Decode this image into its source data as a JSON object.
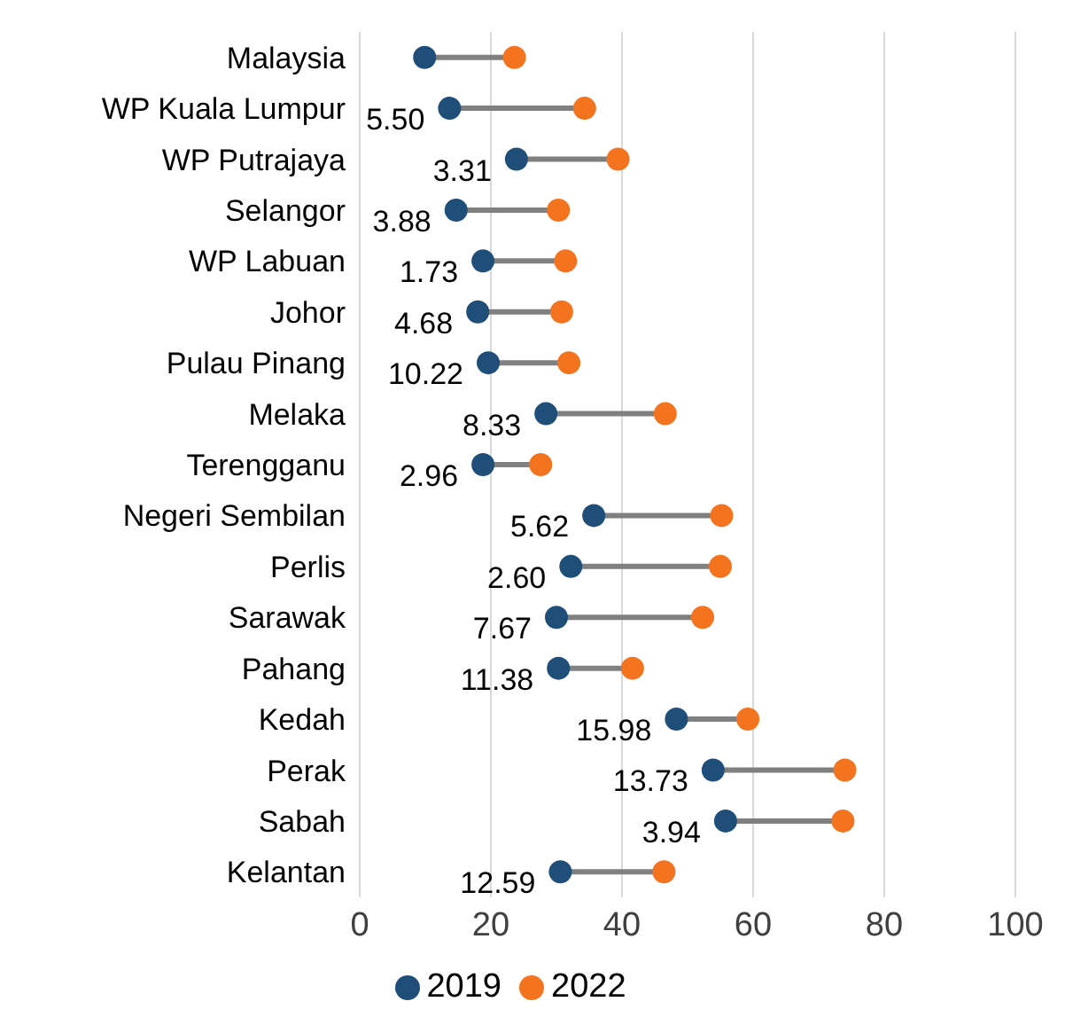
{
  "chart_data": {
    "type": "scatter",
    "orientation": "horizontal",
    "categories": [
      "Malaysia",
      "WP Kuala Lumpur",
      "WP Putrajaya",
      "Selangor",
      "WP Labuan",
      "Johor",
      "Pulau Pinang",
      "Melaka",
      "Terengganu",
      "Negeri Sembilan",
      "Perlis",
      "Sarawak",
      "Pahang",
      "Kedah",
      "Perak",
      "Sabah",
      "Kelantan"
    ],
    "series": [
      {
        "name": "2019",
        "color": "#1f4e79",
        "values": [
          9.9,
          13.7,
          23.9,
          14.7,
          18.8,
          18.0,
          19.6,
          28.4,
          18.8,
          35.7,
          32.2,
          30.0,
          30.3,
          48.3,
          53.9,
          55.8,
          30.6
        ]
      },
      {
        "name": "2022",
        "color": "#f4731f",
        "values": [
          23.6,
          34.3,
          39.4,
          30.3,
          31.4,
          30.8,
          31.9,
          46.6,
          27.6,
          55.2,
          55.0,
          52.3,
          41.6,
          59.2,
          74.0,
          73.7,
          46.4
        ]
      }
    ],
    "annotations": [
      {
        "text": "5.50",
        "x": 13.7,
        "y": "WP Kuala Lumpur"
      },
      {
        "text": "3.31",
        "x": 23.9,
        "y": "WP Putrajaya"
      },
      {
        "text": "3.88",
        "x": 14.7,
        "y": "Selangor"
      },
      {
        "text": "1.73",
        "x": 18.8,
        "y": "WP Labuan"
      },
      {
        "text": "4.68",
        "x": 18.0,
        "y": "Johor"
      },
      {
        "text": "10.22",
        "x": 19.6,
        "y": "Pulau Pinang"
      },
      {
        "text": "8.33",
        "x": 28.4,
        "y": "Melaka"
      },
      {
        "text": "2.96",
        "x": 18.8,
        "y": "Terengganu"
      },
      {
        "text": "5.62",
        "x": 35.7,
        "y": "Negeri Sembilan"
      },
      {
        "text": "2.60",
        "x": 32.2,
        "y": "Perlis"
      },
      {
        "text": "7.67",
        "x": 30.0,
        "y": "Sarawak"
      },
      {
        "text": "11.38",
        "x": 30.3,
        "y": "Pahang"
      },
      {
        "text": "15.98",
        "x": 48.3,
        "y": "Kedah"
      },
      {
        "text": "13.73",
        "x": 53.9,
        "y": "Perak"
      },
      {
        "text": "3.94",
        "x": 55.8,
        "y": "Sabah"
      },
      {
        "text": "12.59",
        "x": 30.6,
        "y": "Kelantan"
      }
    ],
    "xlim": [
      0,
      100
    ],
    "xticks": [
      0,
      20,
      40,
      60,
      80,
      100
    ],
    "grid": "x",
    "legend": "bottom",
    "marker": "circle"
  }
}
